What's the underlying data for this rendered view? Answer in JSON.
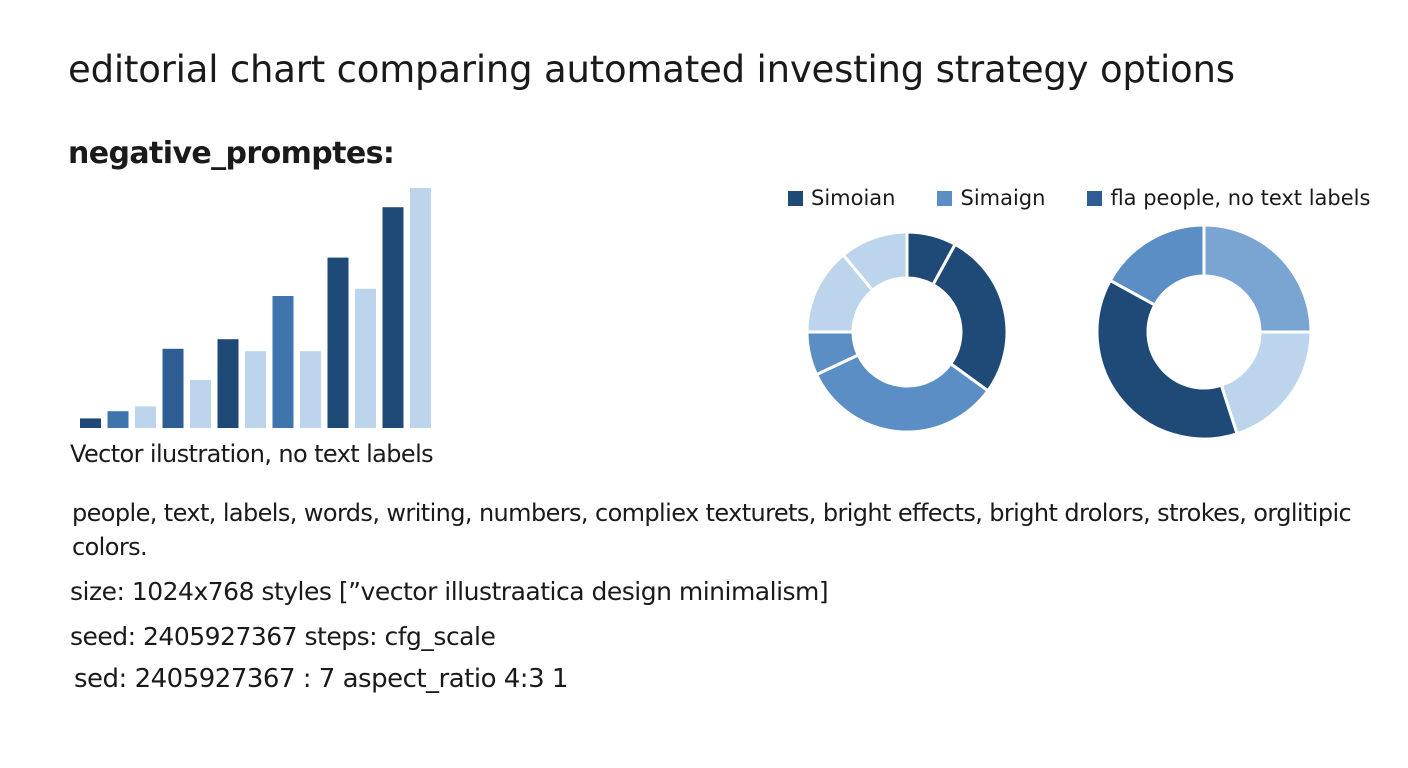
{
  "title": "editorial chart comparing automated investing strategy options",
  "negative_heading": "negative_promptes:",
  "bar_caption": "Vector ilustration, no text labels",
  "legend": [
    {
      "label": "Simoian",
      "color": "#1f4a78"
    },
    {
      "label": "Simaign",
      "color": "#5b8ec4"
    },
    {
      "label": "fla people, no text labels",
      "color": "#2d5d92"
    }
  ],
  "negative_text": "people, text, labels,  words,  writing, numbers, compliex texturets, bright effects, bright drolors, strokes, orglitipic colors.",
  "lines": {
    "size": "size: 1024x768 styles [”vector illustraatica design minimalism]",
    "seed": "seed: 2405927367 steps: cfg_scale",
    "sed": "sed: 2405927367 : 7 aspect_ratio  4:3    1"
  },
  "colors": {
    "dark_blue": "#1f4a78",
    "mid_blue": "#3f74ad",
    "medium_blue": "#5b8ec4",
    "light_blue": "#bcd5ec",
    "text": "#1a1a1a"
  },
  "chart_data": [
    {
      "type": "bar",
      "title": "",
      "xlabel": "",
      "ylabel": "",
      "ylim": [
        0,
        100
      ],
      "grid": false,
      "bars": [
        {
          "value": 4,
          "color": "#1f4a78"
        },
        {
          "value": 7,
          "color": "#3f74ad"
        },
        {
          "value": 9,
          "color": "#bcd5ec"
        },
        {
          "value": 33,
          "color": "#2d5d92"
        },
        {
          "value": 20,
          "color": "#bcd5ec"
        },
        {
          "value": 37,
          "color": "#1f4a78"
        },
        {
          "value": 32,
          "color": "#bcd5ec"
        },
        {
          "value": 55,
          "color": "#3f74ad"
        },
        {
          "value": 32,
          "color": "#bcd5ec"
        },
        {
          "value": 71,
          "color": "#1f4a78"
        },
        {
          "value": 58,
          "color": "#bcd5ec"
        },
        {
          "value": 92,
          "color": "#1f4a78"
        },
        {
          "value": 100,
          "color": "#bcd5ec"
        }
      ]
    },
    {
      "type": "pie",
      "donut": true,
      "title": "",
      "slices": [
        {
          "value": 8,
          "color": "#1f4a78"
        },
        {
          "value": 27,
          "color": "#1f4a78"
        },
        {
          "value": 33,
          "color": "#5b8ec4"
        },
        {
          "value": 7,
          "color": "#5b8ec4"
        },
        {
          "value": 14,
          "color": "#bcd5ec"
        },
        {
          "value": 11,
          "color": "#bcd5ec"
        }
      ]
    },
    {
      "type": "pie",
      "donut": true,
      "title": "",
      "slices": [
        {
          "value": 25,
          "color": "#7aa5d3"
        },
        {
          "value": 20,
          "color": "#bcd5ec"
        },
        {
          "value": 38,
          "color": "#1f4a78"
        },
        {
          "value": 17,
          "color": "#5b8ec4"
        }
      ]
    }
  ]
}
